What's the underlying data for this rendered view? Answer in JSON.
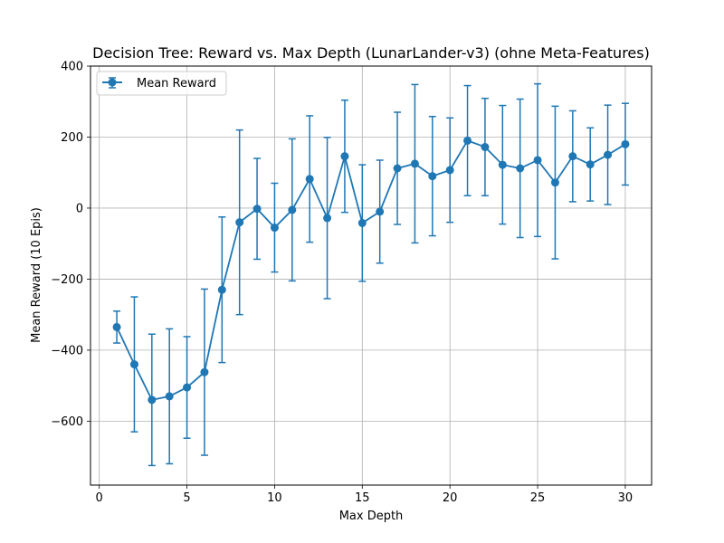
{
  "chart_data": {
    "type": "line",
    "title": "Decision Tree: Reward vs. Max Depth (LunarLander-v3) (ohne Meta-Features)",
    "xlabel": "Max Depth",
    "ylabel": "Mean Reward (10 Epis)",
    "xlim": [
      -0.5,
      31.5
    ],
    "ylim": [
      -780,
      400
    ],
    "xticks": [
      0,
      5,
      10,
      15,
      20,
      25,
      30
    ],
    "yticks": [
      -600,
      -400,
      -200,
      0,
      200,
      400
    ],
    "xtick_labels": [
      "0",
      "5",
      "10",
      "15",
      "20",
      "25",
      "30"
    ],
    "ytick_labels": [
      "−600",
      "−400",
      "−200",
      "0",
      "200",
      "400"
    ],
    "grid": true,
    "legend_position": "top-left",
    "color": "#1f77b4",
    "series": [
      {
        "name": "Mean Reward",
        "x": [
          1,
          2,
          3,
          4,
          5,
          6,
          7,
          8,
          9,
          10,
          11,
          12,
          13,
          14,
          15,
          16,
          17,
          18,
          19,
          20,
          21,
          22,
          23,
          24,
          25,
          26,
          27,
          28,
          29,
          30
        ],
        "y": [
          -335,
          -440,
          -540,
          -530,
          -505,
          -462,
          -230,
          -40,
          -2,
          -55,
          -5,
          82,
          -28,
          146,
          -42,
          -10,
          112,
          125,
          90,
          107,
          190,
          172,
          122,
          112,
          135,
          72,
          146,
          123,
          150,
          180
        ],
        "err": [
          45,
          190,
          185,
          190,
          143,
          234,
          205,
          260,
          142,
          125,
          200,
          178,
          227,
          158,
          164,
          145,
          158,
          223,
          168,
          147,
          155,
          137,
          167,
          195,
          215,
          215,
          128,
          103,
          140,
          115
        ]
      }
    ]
  }
}
